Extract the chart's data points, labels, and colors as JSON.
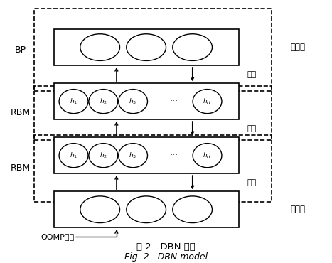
{
  "bg_color": "#ffffff",
  "title_zh": "图 2   DBN 模型",
  "title_en": "Fig. 2   DBN model",
  "label_bp": "BP",
  "label_rbm1": "RBM",
  "label_rbm2": "RBM",
  "label_output": "输出层",
  "label_input": "输入层",
  "label_oomp": "OOMP特征",
  "label_fine1": "微调",
  "label_fine2": "微调",
  "label_fine3": "微调",
  "h_labels": [
    "$h_1$",
    "$h_2$",
    "$h_3$"
  ],
  "hH_label": "$h_H$"
}
